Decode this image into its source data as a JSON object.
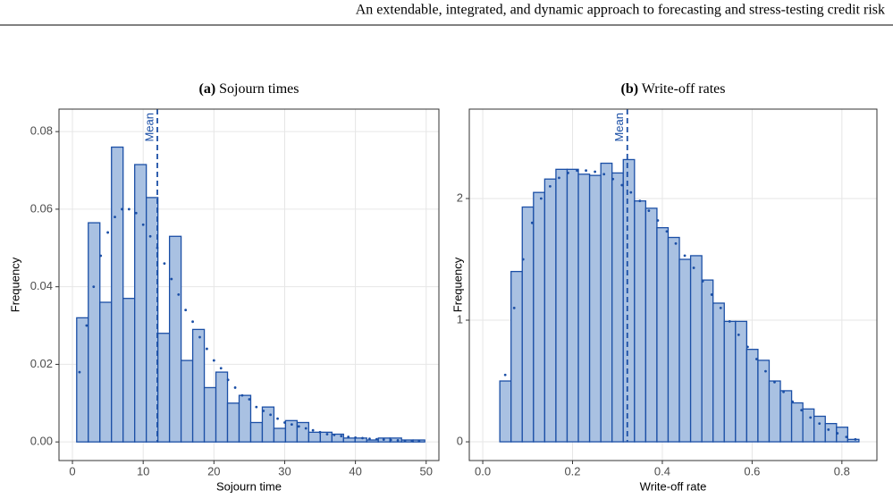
{
  "header": {
    "text": "An extendable, integrated, and dynamic approach to forecasting and stress-testing credit risk"
  },
  "chart_data": [
    {
      "type": "histogram",
      "panel": "(a)",
      "title": "Sojourn times",
      "x_label": "Sojourn time",
      "y_label": "Frequency",
      "bins": [
        0.6,
        2.24,
        3.88,
        5.52,
        7.16,
        8.8,
        10.44,
        12.08,
        13.72,
        15.36,
        17.0,
        18.64,
        20.28,
        21.92,
        23.56,
        25.2,
        26.84,
        28.48,
        30.12,
        31.76,
        33.4,
        35.04,
        36.68,
        38.32,
        39.96,
        41.6,
        43.24,
        44.88,
        46.52,
        48.16,
        49.8
      ],
      "values": [
        0.032,
        0.0565,
        0.036,
        0.076,
        0.037,
        0.0715,
        0.063,
        0.028,
        0.053,
        0.021,
        0.029,
        0.014,
        0.018,
        0.01,
        0.012,
        0.005,
        0.009,
        0.0035,
        0.0055,
        0.005,
        0.0025,
        0.0025,
        0.002,
        0.001,
        0.001,
        0.0005,
        0.001,
        0.001,
        0.0005,
        0.0005
      ],
      "density": {
        "x": [
          1,
          2,
          3,
          4,
          5,
          6,
          7,
          8,
          9,
          10,
          11,
          12,
          13,
          14,
          15,
          16,
          17,
          18,
          19,
          20,
          21,
          22,
          23,
          24,
          25,
          26,
          27,
          28,
          29,
          30,
          31,
          32,
          33,
          34,
          35,
          36,
          37,
          38,
          39,
          40,
          41,
          42,
          43,
          44,
          45,
          46,
          47,
          48,
          49
        ],
        "values": [
          0.018,
          0.03,
          0.04,
          0.048,
          0.054,
          0.058,
          0.06,
          0.06,
          0.059,
          0.056,
          0.053,
          0.05,
          0.046,
          0.042,
          0.038,
          0.034,
          0.031,
          0.027,
          0.024,
          0.021,
          0.019,
          0.016,
          0.014,
          0.012,
          0.011,
          0.009,
          0.008,
          0.007,
          0.006,
          0.005,
          0.0045,
          0.004,
          0.0035,
          0.003,
          0.0025,
          0.002,
          0.0018,
          0.0015,
          0.0013,
          0.0011,
          0.001,
          0.0008,
          0.0007,
          0.0006,
          0.0005,
          0.0004,
          0.0003,
          0.0003,
          0.0002
        ]
      },
      "mean": {
        "text": "Mean",
        "x": 12.0
      },
      "color": "#1b4fa6",
      "fill": "#a9c1e2",
      "xlim": [
        -1.9,
        51.8
      ],
      "xticks": [
        0,
        10,
        20,
        30,
        40,
        50
      ],
      "ylim": [
        -0.0048,
        0.0858
      ],
      "yticks": [
        {
          "value": 0,
          "label": "0.00"
        },
        {
          "value": 0.02,
          "label": "0.02"
        },
        {
          "value": 0.04,
          "label": "0.04"
        },
        {
          "value": 0.06,
          "label": "0.06"
        },
        {
          "value": 0.08,
          "label": "0.08"
        }
      ],
      "grid": true
    },
    {
      "type": "histogram",
      "panel": "(b)",
      "title": "Write-off rates",
      "x_label": "Write-off rate",
      "y_label": "Frequency",
      "bins": [
        0.038,
        0.063,
        0.088,
        0.113,
        0.138,
        0.163,
        0.188,
        0.213,
        0.238,
        0.263,
        0.288,
        0.313,
        0.338,
        0.363,
        0.388,
        0.413,
        0.438,
        0.463,
        0.488,
        0.513,
        0.538,
        0.563,
        0.588,
        0.613,
        0.638,
        0.663,
        0.688,
        0.713,
        0.738,
        0.763,
        0.788,
        0.813,
        0.838
      ],
      "values": [
        0.5,
        1.4,
        1.93,
        2.05,
        2.16,
        2.24,
        2.24,
        2.2,
        2.19,
        2.29,
        2.21,
        2.32,
        1.98,
        1.92,
        1.76,
        1.68,
        1.5,
        1.53,
        1.33,
        1.14,
        0.99,
        0.99,
        0.76,
        0.67,
        0.5,
        0.42,
        0.32,
        0.27,
        0.21,
        0.15,
        0.12,
        0.02
      ],
      "density": {
        "x": [
          0.05,
          0.07,
          0.09,
          0.11,
          0.13,
          0.15,
          0.17,
          0.19,
          0.21,
          0.23,
          0.25,
          0.27,
          0.29,
          0.31,
          0.33,
          0.35,
          0.37,
          0.39,
          0.41,
          0.43,
          0.45,
          0.47,
          0.49,
          0.51,
          0.53,
          0.55,
          0.57,
          0.59,
          0.61,
          0.63,
          0.65,
          0.67,
          0.69,
          0.71,
          0.73,
          0.75,
          0.77,
          0.79,
          0.81,
          0.83
        ],
        "values": [
          0.55,
          1.1,
          1.5,
          1.8,
          2.0,
          2.1,
          2.17,
          2.21,
          2.23,
          2.23,
          2.22,
          2.2,
          2.16,
          2.11,
          2.05,
          1.98,
          1.9,
          1.82,
          1.73,
          1.63,
          1.53,
          1.43,
          1.32,
          1.21,
          1.1,
          0.99,
          0.88,
          0.78,
          0.68,
          0.58,
          0.49,
          0.41,
          0.33,
          0.26,
          0.2,
          0.15,
          0.1,
          0.07,
          0.04,
          0.02
        ]
      },
      "mean": {
        "text": "Mean",
        "x": 0.322
      },
      "color": "#1b4fa6",
      "fill": "#a9c1e2",
      "xlim": [
        -0.03,
        0.878
      ],
      "xticks": [
        {
          "value": 0,
          "label": "0.0"
        },
        0.2,
        0.4,
        0.6,
        0.8
      ],
      "ylim": [
        -0.154,
        2.735
      ],
      "yticks": [
        0,
        1,
        2
      ],
      "grid": true
    }
  ]
}
